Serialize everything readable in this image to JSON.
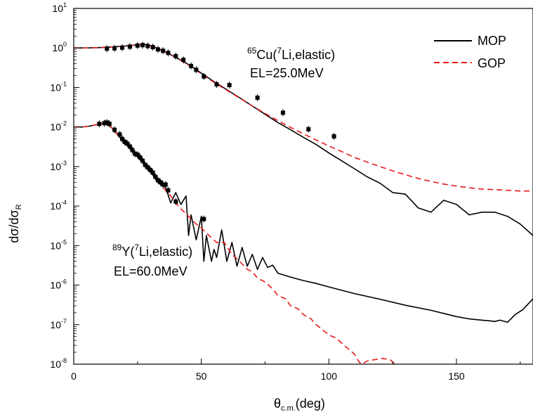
{
  "chart_data": {
    "type": "line",
    "xlabel": "θc.m.(deg)",
    "xlabel_main": "θ",
    "xlabel_sub": "c.m.",
    "xlabel_unit": "(deg)",
    "ylabel_main": "dσ/dσ",
    "ylabel_sub": "R",
    "xlim": [
      0,
      180
    ],
    "ylim": [
      1e-08,
      10
    ],
    "y_scale": "log",
    "grid": false,
    "x_ticks": [
      0,
      50,
      100,
      150
    ],
    "x_tick_labels": [
      "0",
      "50",
      "100",
      "150"
    ],
    "y_ticks": [
      -8,
      -7,
      -6,
      -5,
      -4,
      -3,
      -2,
      -1,
      0,
      1
    ],
    "y_tick_base": "10",
    "y_tick_exponents": [
      "-8",
      "-7",
      "-6",
      "-5",
      "-4",
      "-3",
      "-2",
      "-1",
      "0",
      "1"
    ],
    "legend": {
      "placement": "top-right",
      "entries": [
        {
          "label": "MOP",
          "color": "#000000",
          "style": "solid"
        },
        {
          "label": "GOP",
          "color": "#e8191c",
          "style": "dashed"
        }
      ]
    },
    "annotations": [
      {
        "mass": "65",
        "element": "Cu(",
        "proj_mass": "7",
        "rest": "Li,elastic)",
        "energy": "EL=25.0MeV"
      },
      {
        "mass": "89",
        "element": "Y(",
        "proj_mass": "7",
        "rest": "Li,elastic)",
        "energy": "EL=60.0MeV"
      }
    ],
    "series": [
      {
        "system": "Cu-65 MOP",
        "color": "#000000",
        "dash": "none",
        "x": [
          0,
          5,
          10,
          15,
          20,
          25,
          28,
          31,
          35,
          40,
          45,
          50,
          55,
          60,
          65,
          70,
          75,
          80,
          85,
          90,
          95,
          100,
          105,
          110,
          115,
          120,
          125,
          130,
          135,
          140,
          145,
          150,
          155,
          160,
          165,
          170,
          175,
          180
        ],
        "y": [
          1.0,
          1.0,
          1.02,
          1.06,
          1.12,
          1.2,
          1.22,
          1.1,
          0.85,
          0.58,
          0.38,
          0.23,
          0.14,
          0.088,
          0.055,
          0.034,
          0.021,
          0.013,
          0.0085,
          0.0055,
          0.0036,
          0.0022,
          0.0014,
          0.00088,
          0.00055,
          0.00038,
          0.00022,
          0.0002,
          9e-05,
          7e-05,
          0.00014,
          0.00011,
          6e-05,
          7e-05,
          7e-05,
          5.5e-05,
          3.5e-05,
          1.8e-05
        ]
      },
      {
        "system": "Cu-65 GOP",
        "color": "#e8191c",
        "dash": "8,5",
        "x": [
          0,
          5,
          10,
          15,
          20,
          25,
          28,
          31,
          35,
          40,
          45,
          50,
          55,
          60,
          65,
          70,
          75,
          80,
          85,
          90,
          95,
          100,
          105,
          110,
          115,
          120,
          125,
          130,
          135,
          140,
          145,
          150,
          155,
          160,
          165,
          170,
          175,
          180
        ],
        "y": [
          1.0,
          1.0,
          1.02,
          1.06,
          1.12,
          1.2,
          1.22,
          1.1,
          0.85,
          0.57,
          0.37,
          0.22,
          0.135,
          0.085,
          0.054,
          0.034,
          0.022,
          0.0145,
          0.0098,
          0.0067,
          0.0047,
          0.0033,
          0.0024,
          0.0017,
          0.0013,
          0.001,
          0.00078,
          0.00062,
          0.0005,
          0.00042,
          0.00036,
          0.00032,
          0.00029,
          0.00027,
          0.00026,
          0.00025,
          0.00024,
          0.00024
        ]
      },
      {
        "system": "Y-89 MOP",
        "color": "#000000",
        "dash": "none",
        "x": [
          0,
          3,
          6,
          9,
          12,
          14,
          16,
          18,
          20,
          22,
          24,
          26,
          28,
          30,
          32,
          34,
          36,
          38,
          40,
          42,
          44,
          45,
          46,
          48,
          50,
          51,
          52,
          54,
          55,
          56,
          58,
          60,
          62,
          64,
          66,
          68,
          70,
          72,
          74,
          76,
          78,
          80,
          85,
          90,
          95,
          100,
          110,
          120,
          130,
          140,
          150,
          155,
          160,
          163,
          165,
          167,
          170,
          173,
          176,
          180
        ],
        "y": [
          0.01,
          0.01,
          0.0105,
          0.0115,
          0.0125,
          0.011,
          0.008,
          0.0055,
          0.0042,
          0.0032,
          0.0021,
          0.0015,
          0.0011,
          0.0008,
          0.0005,
          0.00035,
          0.0003,
          0.00012,
          0.00022,
          0.00011,
          0.00018,
          1.8e-05,
          6e-05,
          1.4e-05,
          5.5e-05,
          4e-06,
          1.8e-05,
          4e-06,
          8e-06,
          5e-06,
          2.5e-05,
          4e-06,
          1.2e-05,
          3e-06,
          9e-06,
          3e-06,
          6e-06,
          2.5e-06,
          5e-06,
          2.8e-06,
          3.2e-06,
          2e-06,
          1.6e-06,
          1.3e-06,
          1.1e-06,
          9e-07,
          6.1e-07,
          4.4e-07,
          3.1e-07,
          2.3e-07,
          1.6e-07,
          1.4e-07,
          1.3e-07,
          1.25e-07,
          1.2e-07,
          1.3e-07,
          1.15e-07,
          1.8e-07,
          2.4e-07,
          4.5e-07
        ]
      },
      {
        "system": "Y-89 GOP",
        "color": "#e8191c",
        "dash": "8,5",
        "x": [
          0,
          3,
          6,
          9,
          12,
          14,
          16,
          18,
          20,
          22,
          24,
          26,
          28,
          30,
          32,
          34,
          36,
          38,
          40,
          42,
          45,
          48,
          50,
          53,
          56,
          59,
          62,
          65,
          68,
          70,
          72,
          75,
          78,
          80,
          83,
          85,
          88,
          90,
          93,
          95,
          98,
          100,
          103,
          106,
          110,
          112,
          113,
          115,
          118,
          121,
          124,
          126
        ],
        "y": [
          0.01,
          0.01,
          0.0105,
          0.0115,
          0.0125,
          0.011,
          0.008,
          0.0055,
          0.004,
          0.003,
          0.0022,
          0.0016,
          0.0011,
          0.00075,
          0.0005,
          0.00035,
          0.00025,
          0.00018,
          0.00012,
          8.5e-05,
          5.5e-05,
          3.5e-05,
          2.8e-05,
          1.8e-05,
          1.2e-05,
          1.2e-05,
          6e-06,
          4e-06,
          2.5e-06,
          2.2e-06,
          1.5e-06,
          1.2e-06,
          8e-07,
          5.5e-07,
          4.5e-07,
          3e-07,
          2.5e-07,
          1.8e-07,
          1.4e-07,
          1e-07,
          7e-08,
          5.5e-08,
          4.5e-08,
          3e-08,
          1.8e-08,
          1.1e-08,
          1e-08,
          1.2e-08,
          1.3e-08,
          1.4e-08,
          1.3e-08,
          1e-08
        ]
      }
    ],
    "experimental_points": {
      "color": "#000000",
      "marker": "square",
      "cu65": {
        "x": [
          13,
          16,
          19,
          22,
          25,
          27,
          29,
          31,
          33,
          35,
          37,
          40,
          43,
          46,
          48,
          51,
          56,
          61,
          72,
          82,
          92,
          102
        ],
        "y": [
          0.96,
          0.98,
          1.02,
          1.08,
          1.15,
          1.18,
          1.12,
          1.05,
          0.92,
          0.85,
          0.75,
          0.62,
          0.5,
          0.35,
          0.28,
          0.19,
          0.12,
          0.115,
          0.055,
          0.023,
          0.0088,
          0.0058
        ]
      },
      "y89": {
        "x": [
          10,
          12,
          13,
          14,
          16,
          18,
          19,
          20,
          21,
          22,
          23,
          24,
          25,
          26,
          27,
          28,
          29,
          30,
          31,
          32,
          33,
          34,
          35,
          36,
          37,
          40,
          51
        ],
        "y": [
          0.012,
          0.0125,
          0.013,
          0.012,
          0.0085,
          0.0065,
          0.005,
          0.0042,
          0.0038,
          0.0032,
          0.0026,
          0.0021,
          0.002,
          0.0017,
          0.0014,
          0.0011,
          0.00095,
          0.00082,
          0.0007,
          0.00055,
          0.00045,
          0.0004,
          0.00035,
          0.00035,
          0.00025,
          0.00013,
          4.7e-05
        ]
      }
    }
  }
}
